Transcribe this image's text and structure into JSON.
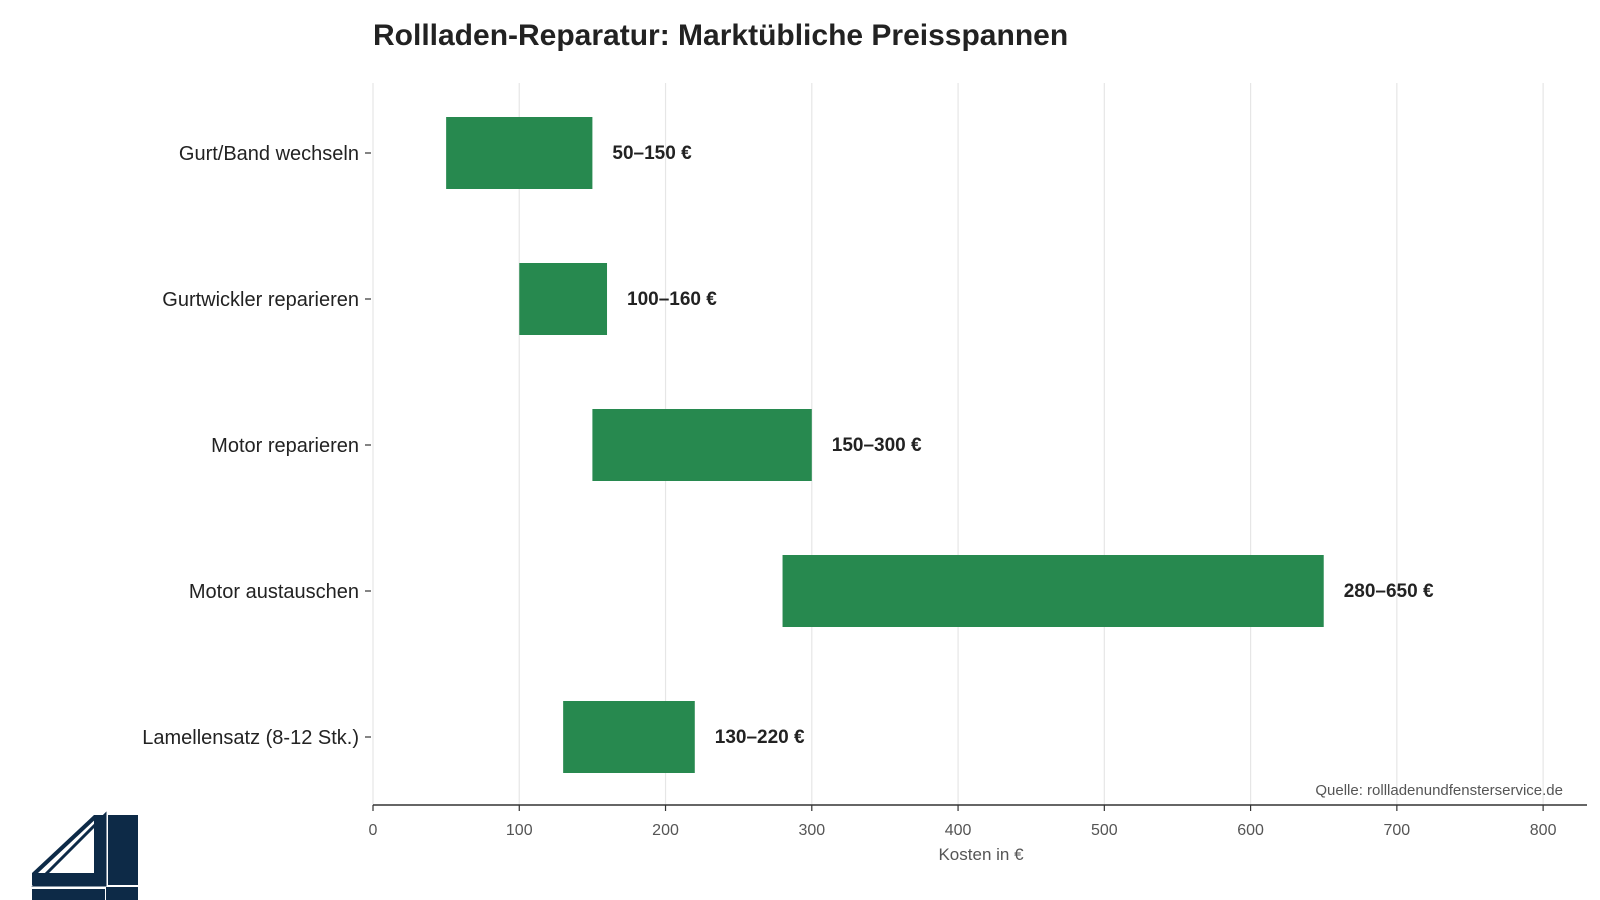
{
  "colors": {
    "bar": "#27894f",
    "logo": "#0d2a47",
    "grid": "#e6e6e6",
    "axis": "#333333"
  },
  "logo_icon": "window-frame-logo-icon",
  "chart_data": {
    "type": "bar",
    "orientation": "horizontal",
    "title": "Rollladen-Reparatur: Marktübliche Preisspannen",
    "xlabel": "Kosten in €",
    "ylabel": "",
    "xlim": [
      0,
      830
    ],
    "grid": "vertical",
    "source": "Quelle: rollladenundfensterservice.de",
    "xticks": [
      0,
      100,
      200,
      300,
      400,
      500,
      600,
      700,
      800
    ],
    "categories": [
      "Gurt/Band wechseln",
      "Gurtwickler reparieren",
      "Motor reparieren",
      "Motor austauschen",
      "Lamellensatz (8-12 Stk.)"
    ],
    "ranges": [
      {
        "min": 50,
        "max": 150,
        "label": "50–150 €"
      },
      {
        "min": 100,
        "max": 160,
        "label": "100–160 €"
      },
      {
        "min": 150,
        "max": 300,
        "label": "150–300 €"
      },
      {
        "min": 280,
        "max": 650,
        "label": "280–650 €"
      },
      {
        "min": 130,
        "max": 220,
        "label": "130–220 €"
      }
    ]
  }
}
